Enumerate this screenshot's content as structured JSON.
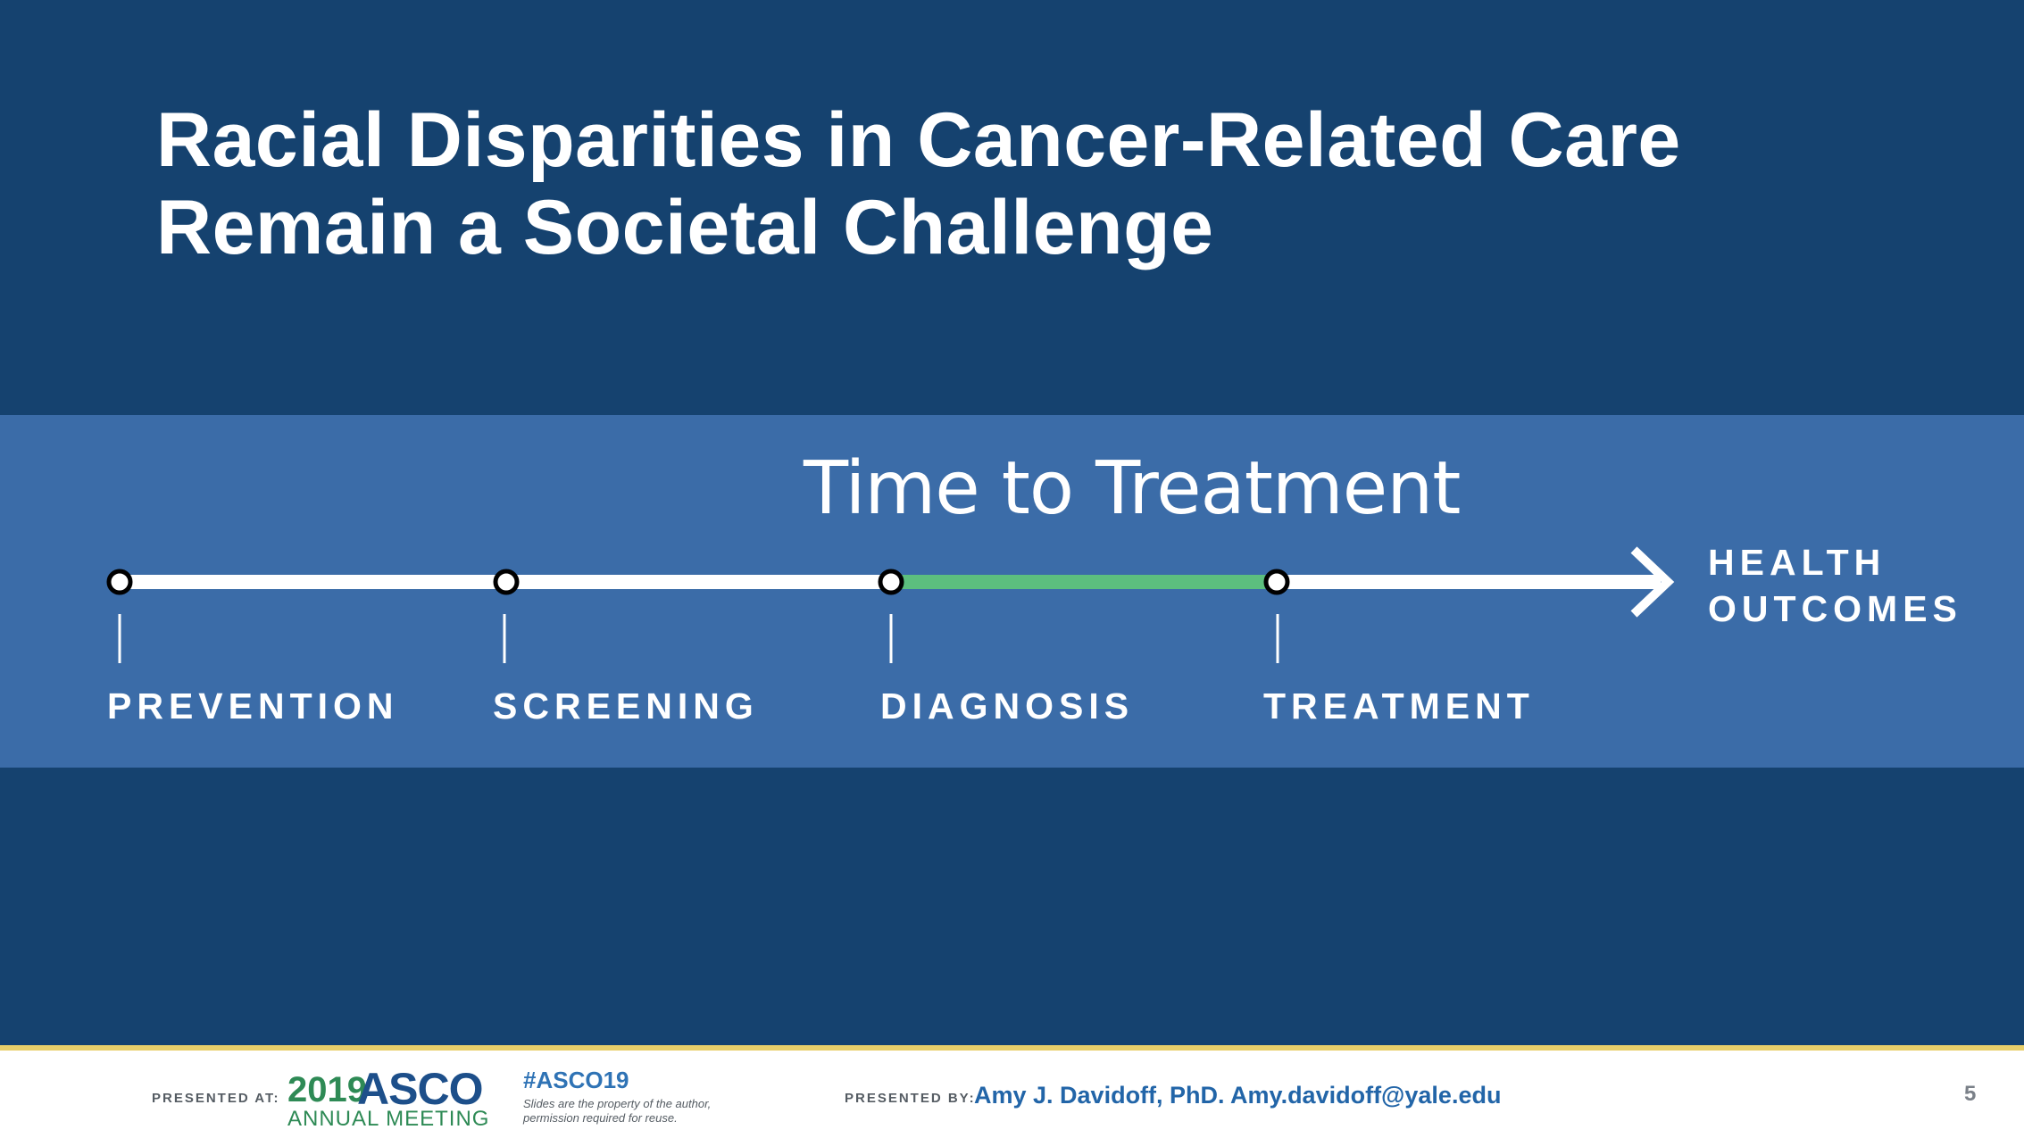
{
  "slide": {
    "title_line1": "Racial Disparities in Cancer-Related Care",
    "title_line2": "Remain a Societal Challenge",
    "page_number": "5"
  },
  "timeline": {
    "heading": "Time to Treatment",
    "stages": [
      "PREVENTION",
      "SCREENING",
      "DIAGNOSIS",
      "TREATMENT"
    ],
    "end_label_line1": "HEALTH",
    "end_label_line2": "OUTCOMES",
    "highlight_segment": "DIAGNOSIS to TREATMENT",
    "colors": {
      "line": "#ffffff",
      "highlight": "#5cbf7e"
    }
  },
  "footer": {
    "presented_at": "PRESENTED AT:",
    "asco_year": "2019",
    "asco_name": "ASCO",
    "asco_meeting": "ANNUAL MEETING",
    "hashtag": "#ASCO19",
    "disclaimer_line1": "Slides are the property of the author,",
    "disclaimer_line2": "permission required for reuse.",
    "presented_by": "PRESENTED BY:",
    "author": "Amy J. Davidoff, PhD. Amy.davidoff@yale.edu"
  }
}
